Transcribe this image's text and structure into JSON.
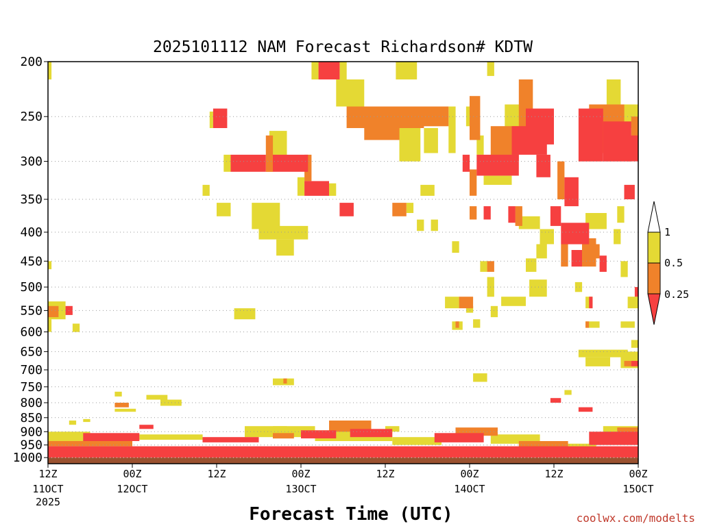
{
  "colors": {
    "low": "#f64040",
    "mid": "#f0822a",
    "high": "#e4d934",
    "ground": "#9a5230",
    "grid": "#999999",
    "credit": "#c0392b"
  },
  "chart_data": {
    "type": "heatmap",
    "title": "2025101112 NAM Forecast Richardson# KDTW",
    "xlabel": "Forecast Time (UTC)",
    "ylabel": "",
    "credit": "coolwx.com/modelts",
    "x_range_hours": [
      0,
      84
    ],
    "y_levels_hpa": [
      200,
      250,
      300,
      350,
      400,
      450,
      500,
      550,
      600,
      650,
      700,
      750,
      800,
      850,
      900,
      950,
      1000
    ],
    "y_range_hpa": [
      200,
      1025
    ],
    "x_ticks": [
      {
        "hour": 0,
        "line1": "12Z",
        "line2": "11OCT",
        "line3": "2025"
      },
      {
        "hour": 12,
        "line1": "00Z",
        "line2": "12OCT",
        "line3": ""
      },
      {
        "hour": 24,
        "line1": "12Z",
        "line2": "",
        "line3": ""
      },
      {
        "hour": 36,
        "line1": "00Z",
        "line2": "13OCT",
        "line3": ""
      },
      {
        "hour": 48,
        "line1": "12Z",
        "line2": "",
        "line3": ""
      },
      {
        "hour": 60,
        "line1": "00Z",
        "line2": "14OCT",
        "line3": ""
      },
      {
        "hour": 72,
        "line1": "12Z",
        "line2": "",
        "line3": ""
      },
      {
        "hour": 84,
        "line1": "00Z",
        "line2": "15OCT",
        "line3": ""
      }
    ],
    "legend": {
      "placement": "right",
      "labels": [
        "1",
        "0.5",
        "0.25"
      ],
      "bins": [
        "< 0.25",
        "0.25 - 0.5",
        "0.5 - 1"
      ]
    },
    "ground_level_hpa": 1000,
    "regions": [
      {
        "bin": "low",
        "t0": 38.5,
        "t1": 41.5,
        "p0": 200,
        "p1": 215
      },
      {
        "bin": "high",
        "t0": 37.5,
        "t1": 38.5,
        "p0": 200,
        "p1": 215
      },
      {
        "bin": "high",
        "t0": 41.5,
        "t1": 42.5,
        "p0": 200,
        "p1": 215
      },
      {
        "bin": "high",
        "t0": 41,
        "t1": 45,
        "p0": 215,
        "p1": 240
      },
      {
        "bin": "high",
        "t0": 49.5,
        "t1": 52.5,
        "p0": 200,
        "p1": 215
      },
      {
        "bin": "high",
        "t0": 62.5,
        "t1": 63.5,
        "p0": 200,
        "p1": 212
      },
      {
        "bin": "mid",
        "t0": 42.5,
        "t1": 53.5,
        "p0": 240,
        "p1": 262
      },
      {
        "bin": "mid",
        "t0": 45,
        "t1": 50,
        "p0": 262,
        "p1": 275
      },
      {
        "bin": "mid",
        "t0": 52,
        "t1": 57,
        "p0": 240,
        "p1": 260
      },
      {
        "bin": "high",
        "t0": 50,
        "t1": 53,
        "p0": 262,
        "p1": 300
      },
      {
        "bin": "high",
        "t0": 53.5,
        "t1": 55.5,
        "p0": 262,
        "p1": 290
      },
      {
        "bin": "high",
        "t0": 57,
        "t1": 58,
        "p0": 240,
        "p1": 290
      },
      {
        "bin": "high",
        "t0": 59.5,
        "t1": 60.5,
        "p0": 240,
        "p1": 260
      },
      {
        "bin": "low",
        "t0": 23.5,
        "t1": 25.5,
        "p0": 242,
        "p1": 262
      },
      {
        "bin": "high",
        "t0": 23,
        "t1": 23.5,
        "p0": 245,
        "p1": 262
      },
      {
        "bin": "low",
        "t0": 26,
        "t1": 31,
        "p0": 292,
        "p1": 313
      },
      {
        "bin": "low",
        "t0": 32,
        "t1": 37,
        "p0": 292,
        "p1": 313
      },
      {
        "bin": "mid",
        "t0": 31,
        "t1": 32,
        "p0": 270,
        "p1": 313
      },
      {
        "bin": "high",
        "t0": 31.5,
        "t1": 34,
        "p0": 265,
        "p1": 292
      },
      {
        "bin": "high",
        "t0": 25,
        "t1": 26,
        "p0": 292,
        "p1": 313
      },
      {
        "bin": "mid",
        "t0": 36.5,
        "t1": 37.5,
        "p0": 292,
        "p1": 325
      },
      {
        "bin": "low",
        "t0": 36.5,
        "t1": 40,
        "p0": 325,
        "p1": 345
      },
      {
        "bin": "high",
        "t0": 35.5,
        "t1": 36.5,
        "p0": 320,
        "p1": 345
      },
      {
        "bin": "high",
        "t0": 40,
        "t1": 41,
        "p0": 328,
        "p1": 345
      },
      {
        "bin": "low",
        "t0": 41.5,
        "t1": 43.5,
        "p0": 355,
        "p1": 375
      },
      {
        "bin": "mid",
        "t0": 49,
        "t1": 51,
        "p0": 355,
        "p1": 375
      },
      {
        "bin": "high",
        "t0": 51,
        "t1": 52,
        "p0": 355,
        "p1": 370
      },
      {
        "bin": "high",
        "t0": 22,
        "t1": 23,
        "p0": 330,
        "p1": 345
      },
      {
        "bin": "high",
        "t0": 24,
        "t1": 26,
        "p0": 355,
        "p1": 375
      },
      {
        "bin": "high",
        "t0": 29,
        "t1": 33,
        "p0": 355,
        "p1": 395
      },
      {
        "bin": "high",
        "t0": 30,
        "t1": 37,
        "p0": 390,
        "p1": 412
      },
      {
        "bin": "high",
        "t0": 32.5,
        "t1": 35,
        "p0": 412,
        "p1": 440
      },
      {
        "bin": "high",
        "t0": 52.5,
        "t1": 53.5,
        "p0": 380,
        "p1": 398
      },
      {
        "bin": "high",
        "t0": 54.5,
        "t1": 55.5,
        "p0": 380,
        "p1": 398
      },
      {
        "bin": "high",
        "t0": 53,
        "t1": 55,
        "p0": 330,
        "p1": 345
      },
      {
        "bin": "high",
        "t0": 57.5,
        "t1": 58.5,
        "p0": 415,
        "p1": 435
      },
      {
        "bin": "mid",
        "t0": 60,
        "t1": 61.5,
        "p0": 230,
        "p1": 275
      },
      {
        "bin": "high",
        "t0": 61,
        "t1": 62,
        "p0": 270,
        "p1": 292
      },
      {
        "bin": "high",
        "t0": 65,
        "t1": 68,
        "p0": 238,
        "p1": 262
      },
      {
        "bin": "mid",
        "t0": 63,
        "t1": 67,
        "p0": 260,
        "p1": 300
      },
      {
        "bin": "low",
        "t0": 66,
        "t1": 71,
        "p0": 260,
        "p1": 292
      },
      {
        "bin": "mid",
        "t0": 67,
        "t1": 69,
        "p0": 215,
        "p1": 262
      },
      {
        "bin": "low",
        "t0": 68,
        "t1": 72,
        "p0": 242,
        "p1": 280
      },
      {
        "bin": "low",
        "t0": 75.5,
        "t1": 79,
        "p0": 242,
        "p1": 300
      },
      {
        "bin": "mid",
        "t0": 77,
        "t1": 82,
        "p0": 238,
        "p1": 290
      },
      {
        "bin": "low",
        "t0": 79,
        "t1": 83,
        "p0": 255,
        "p1": 300
      },
      {
        "bin": "mid",
        "t0": 83,
        "t1": 84,
        "p0": 250,
        "p1": 290
      },
      {
        "bin": "low",
        "t0": 82.5,
        "t1": 84,
        "p0": 270,
        "p1": 300
      },
      {
        "bin": "high",
        "t0": 78,
        "t1": 84,
        "p0": 238,
        "p1": 262
      },
      {
        "bin": "high",
        "t0": 79.5,
        "t1": 81.5,
        "p0": 215,
        "p1": 240
      },
      {
        "bin": "low",
        "t0": 59,
        "t1": 60,
        "p0": 292,
        "p1": 313
      },
      {
        "bin": "low",
        "t0": 61,
        "t1": 67,
        "p0": 292,
        "p1": 318
      },
      {
        "bin": "mid",
        "t0": 60,
        "t1": 61,
        "p0": 310,
        "p1": 345
      },
      {
        "bin": "high",
        "t0": 62,
        "t1": 66,
        "p0": 318,
        "p1": 330
      },
      {
        "bin": "low",
        "t0": 69.5,
        "t1": 71.5,
        "p0": 292,
        "p1": 320
      },
      {
        "bin": "low",
        "t0": 73.5,
        "t1": 75.5,
        "p0": 320,
        "p1": 360
      },
      {
        "bin": "mid",
        "t0": 72.5,
        "t1": 73.5,
        "p0": 300,
        "p1": 350
      },
      {
        "bin": "low",
        "t0": 62,
        "t1": 63,
        "p0": 360,
        "p1": 380
      },
      {
        "bin": "mid",
        "t0": 60,
        "t1": 61,
        "p0": 360,
        "p1": 380
      },
      {
        "bin": "low",
        "t0": 65.5,
        "t1": 66.5,
        "p0": 360,
        "p1": 385
      },
      {
        "bin": "mid",
        "t0": 66.5,
        "t1": 67.5,
        "p0": 360,
        "p1": 390
      },
      {
        "bin": "high",
        "t0": 67,
        "t1": 70,
        "p0": 375,
        "p1": 395
      },
      {
        "bin": "low",
        "t0": 71.5,
        "t1": 73,
        "p0": 360,
        "p1": 390
      },
      {
        "bin": "low",
        "t0": 73,
        "t1": 77,
        "p0": 385,
        "p1": 420
      },
      {
        "bin": "mid",
        "t0": 73,
        "t1": 74,
        "p0": 420,
        "p1": 460
      },
      {
        "bin": "low",
        "t0": 74.5,
        "t1": 76,
        "p0": 430,
        "p1": 460
      },
      {
        "bin": "mid",
        "t0": 76,
        "t1": 78,
        "p0": 410,
        "p1": 460
      },
      {
        "bin": "high",
        "t0": 70,
        "t1": 72,
        "p0": 395,
        "p1": 420
      },
      {
        "bin": "high",
        "t0": 69.5,
        "t1": 71,
        "p0": 420,
        "p1": 445
      },
      {
        "bin": "high",
        "t0": 76.5,
        "t1": 79.5,
        "p0": 370,
        "p1": 395
      },
      {
        "bin": "mid",
        "t0": 77.5,
        "t1": 78.5,
        "p0": 420,
        "p1": 445
      },
      {
        "bin": "low",
        "t0": 78.5,
        "t1": 79.5,
        "p0": 440,
        "p1": 470
      },
      {
        "bin": "high",
        "t0": 80.5,
        "t1": 81.5,
        "p0": 395,
        "p1": 420
      },
      {
        "bin": "high",
        "t0": 81,
        "t1": 82,
        "p0": 360,
        "p1": 385
      },
      {
        "bin": "low",
        "t0": 82,
        "t1": 83.5,
        "p0": 330,
        "p1": 350
      },
      {
        "bin": "high",
        "t0": 68,
        "t1": 69.5,
        "p0": 445,
        "p1": 470
      },
      {
        "bin": "mid",
        "t0": 62.5,
        "t1": 63.5,
        "p0": 450,
        "p1": 470
      },
      {
        "bin": "high",
        "t0": 61.5,
        "t1": 62.5,
        "p0": 450,
        "p1": 470
      },
      {
        "bin": "high",
        "t0": 62.5,
        "t1": 63.5,
        "p0": 480,
        "p1": 520
      },
      {
        "bin": "high",
        "t0": 64.5,
        "t1": 68,
        "p0": 520,
        "p1": 540
      },
      {
        "bin": "high",
        "t0": 68.5,
        "t1": 71,
        "p0": 485,
        "p1": 520
      },
      {
        "bin": "high",
        "t0": 56.5,
        "t1": 58.5,
        "p0": 520,
        "p1": 545
      },
      {
        "bin": "mid",
        "t0": 58.5,
        "t1": 60.5,
        "p0": 520,
        "p1": 545
      },
      {
        "bin": "high",
        "t0": 59.5,
        "t1": 60.5,
        "p0": 540,
        "p1": 555
      },
      {
        "bin": "high",
        "t0": 63,
        "t1": 64,
        "p0": 540,
        "p1": 565
      },
      {
        "bin": "high",
        "t0": 60.5,
        "t1": 61.5,
        "p0": 570,
        "p1": 590
      },
      {
        "bin": "high",
        "t0": 57.5,
        "t1": 59,
        "p0": 575,
        "p1": 595
      },
      {
        "bin": "mid",
        "t0": 58,
        "t1": 58.5,
        "p0": 575,
        "p1": 590
      },
      {
        "bin": "high",
        "t0": 75,
        "t1": 76,
        "p0": 490,
        "p1": 510
      },
      {
        "bin": "high",
        "t0": 76.5,
        "t1": 77.5,
        "p0": 520,
        "p1": 545
      },
      {
        "bin": "low",
        "t0": 77,
        "t1": 77.5,
        "p0": 520,
        "p1": 545
      },
      {
        "bin": "high",
        "t0": 81.5,
        "t1": 82.5,
        "p0": 450,
        "p1": 480
      },
      {
        "bin": "high",
        "t0": 82.5,
        "t1": 84,
        "p0": 520,
        "p1": 545
      },
      {
        "bin": "low",
        "t0": 83.5,
        "t1": 84,
        "p0": 500,
        "p1": 520
      },
      {
        "bin": "high",
        "t0": 76.5,
        "t1": 78.5,
        "p0": 575,
        "p1": 590
      },
      {
        "bin": "mid",
        "t0": 76.5,
        "t1": 77,
        "p0": 575,
        "p1": 590
      },
      {
        "bin": "high",
        "t0": 81.5,
        "t1": 83.5,
        "p0": 575,
        "p1": 590
      },
      {
        "bin": "high",
        "t0": 83,
        "t1": 84,
        "p0": 620,
        "p1": 640
      },
      {
        "bin": "high",
        "t0": 75.5,
        "t1": 82.5,
        "p0": 645,
        "p1": 665
      },
      {
        "bin": "high",
        "t0": 76.5,
        "t1": 80,
        "p0": 665,
        "p1": 690
      },
      {
        "bin": "high",
        "t0": 81.5,
        "t1": 84,
        "p0": 650,
        "p1": 695
      },
      {
        "bin": "mid",
        "t0": 82,
        "t1": 83,
        "p0": 675,
        "p1": 690
      },
      {
        "bin": "low",
        "t0": 83,
        "t1": 84,
        "p0": 675,
        "p1": 690
      },
      {
        "bin": "high",
        "t0": 60.5,
        "t1": 62.5,
        "p0": 710,
        "p1": 735
      },
      {
        "bin": "high",
        "t0": 0,
        "t1": 2.5,
        "p0": 530,
        "p1": 570
      },
      {
        "bin": "mid",
        "t0": 0,
        "t1": 1.5,
        "p0": 540,
        "p1": 565
      },
      {
        "bin": "low",
        "t0": 2.5,
        "t1": 3.5,
        "p0": 540,
        "p1": 560
      },
      {
        "bin": "high",
        "t0": 3.5,
        "t1": 4.5,
        "p0": 580,
        "p1": 600
      },
      {
        "bin": "high",
        "t0": 0,
        "t1": 0.5,
        "p0": 570,
        "p1": 600
      },
      {
        "bin": "high",
        "t0": 26.5,
        "t1": 29.5,
        "p0": 545,
        "p1": 570
      },
      {
        "bin": "high",
        "t0": 0,
        "t1": 0.5,
        "p0": 200,
        "p1": 215
      },
      {
        "bin": "high",
        "t0": 0,
        "t1": 0.5,
        "p0": 450,
        "p1": 465
      },
      {
        "bin": "high",
        "t0": 32,
        "t1": 35,
        "p0": 725,
        "p1": 745
      },
      {
        "bin": "mid",
        "t0": 33.5,
        "t1": 34,
        "p0": 725,
        "p1": 740
      },
      {
        "bin": "high",
        "t0": 14,
        "t1": 17,
        "p0": 775,
        "p1": 790
      },
      {
        "bin": "high",
        "t0": 16,
        "t1": 19,
        "p0": 790,
        "p1": 810
      },
      {
        "bin": "high",
        "t0": 9.5,
        "t1": 12.5,
        "p0": 820,
        "p1": 830
      },
      {
        "bin": "mid",
        "t0": 9.5,
        "t1": 11.5,
        "p0": 800,
        "p1": 815
      },
      {
        "bin": "high",
        "t0": 9.5,
        "t1": 10.5,
        "p0": 765,
        "p1": 780
      },
      {
        "bin": "low",
        "t0": 71.5,
        "t1": 73,
        "p0": 785,
        "p1": 800
      },
      {
        "bin": "high",
        "t0": 73.5,
        "t1": 74.5,
        "p0": 760,
        "p1": 775
      },
      {
        "bin": "low",
        "t0": 75.5,
        "t1": 77.5,
        "p0": 815,
        "p1": 830
      },
      {
        "bin": "low",
        "t0": 0,
        "t1": 84,
        "p0": 955,
        "p1": 1000
      },
      {
        "bin": "mid",
        "t0": 0,
        "t1": 12,
        "p0": 935,
        "p1": 955
      },
      {
        "bin": "high",
        "t0": 0,
        "t1": 6,
        "p0": 900,
        "p1": 935
      },
      {
        "bin": "low",
        "t0": 5,
        "t1": 13,
        "p0": 905,
        "p1": 935
      },
      {
        "bin": "high",
        "t0": 13,
        "t1": 22,
        "p0": 910,
        "p1": 930
      },
      {
        "bin": "low",
        "t0": 22,
        "t1": 30,
        "p0": 920,
        "p1": 940
      },
      {
        "bin": "high",
        "t0": 28,
        "t1": 38,
        "p0": 880,
        "p1": 920
      },
      {
        "bin": "mid",
        "t0": 32,
        "t1": 35,
        "p0": 905,
        "p1": 925
      },
      {
        "bin": "low",
        "t0": 36,
        "t1": 41,
        "p0": 895,
        "p1": 925
      },
      {
        "bin": "mid",
        "t0": 40,
        "t1": 46,
        "p0": 860,
        "p1": 900
      },
      {
        "bin": "high",
        "t0": 38,
        "t1": 49,
        "p0": 895,
        "p1": 935
      },
      {
        "bin": "low",
        "t0": 43,
        "t1": 49,
        "p0": 890,
        "p1": 920
      },
      {
        "bin": "high",
        "t0": 49,
        "t1": 56,
        "p0": 920,
        "p1": 950
      },
      {
        "bin": "low",
        "t0": 55,
        "t1": 62,
        "p0": 905,
        "p1": 940
      },
      {
        "bin": "mid",
        "t0": 58,
        "t1": 64,
        "p0": 885,
        "p1": 915
      },
      {
        "bin": "high",
        "t0": 63,
        "t1": 70,
        "p0": 910,
        "p1": 945
      },
      {
        "bin": "mid",
        "t0": 67,
        "t1": 74,
        "p0": 935,
        "p1": 965
      },
      {
        "bin": "high",
        "t0": 73,
        "t1": 78,
        "p0": 945,
        "p1": 975
      },
      {
        "bin": "low",
        "t0": 77,
        "t1": 84,
        "p0": 900,
        "p1": 950
      },
      {
        "bin": "high",
        "t0": 79,
        "t1": 84,
        "p0": 880,
        "p1": 905
      },
      {
        "bin": "mid",
        "t0": 81,
        "t1": 84,
        "p0": 885,
        "p1": 920
      },
      {
        "bin": "high",
        "t0": 3,
        "t1": 4,
        "p0": 860,
        "p1": 875
      },
      {
        "bin": "high",
        "t0": 5,
        "t1": 6,
        "p0": 855,
        "p1": 865
      },
      {
        "bin": "low",
        "t0": 13,
        "t1": 15,
        "p0": 875,
        "p1": 890
      },
      {
        "bin": "high",
        "t0": 32,
        "t1": 34,
        "p0": 880,
        "p1": 895
      },
      {
        "bin": "high",
        "t0": 48,
        "t1": 50,
        "p0": 880,
        "p1": 900
      }
    ]
  }
}
